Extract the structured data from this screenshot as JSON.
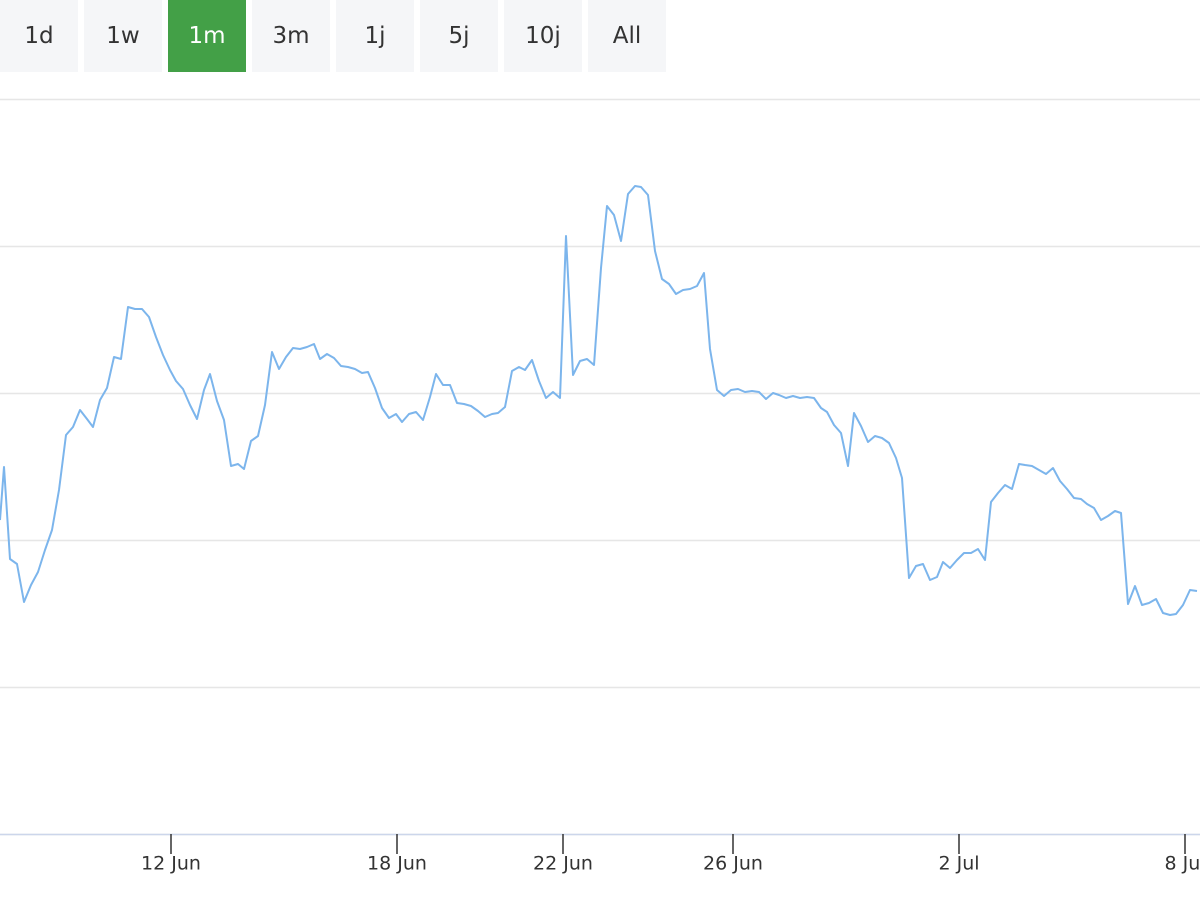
{
  "buttons": {
    "options": [
      "1d",
      "1w",
      "1m",
      "3m",
      "1j",
      "5j",
      "10j",
      "All"
    ],
    "selected": 2
  },
  "chart_data": {
    "type": "line",
    "color": "#7cb5ec",
    "grid": true,
    "xlim": [
      0,
      1200
    ],
    "ylim": [
      0,
      735
    ],
    "yticks": [
      0,
      147,
      294,
      441,
      588,
      735
    ],
    "xticks": [
      {
        "value": 171,
        "label": "12 Jun"
      },
      {
        "value": 397,
        "label": "18 Jun"
      },
      {
        "value": 563,
        "label": "22 Jun"
      },
      {
        "value": 733,
        "label": "26 Jun"
      },
      {
        "value": 959,
        "label": "2 Jul"
      },
      {
        "value": 1185,
        "label": "8 Jul"
      }
    ],
    "x": [
      0,
      4,
      10,
      17,
      24,
      31,
      38,
      45,
      52,
      59,
      66,
      73,
      80,
      87,
      93,
      100,
      107,
      114,
      121,
      128,
      135,
      142,
      149,
      156,
      163,
      170,
      176,
      183,
      190,
      197,
      204,
      210,
      217,
      224,
      231,
      238,
      244,
      251,
      258,
      265,
      272,
      279,
      286,
      293,
      300,
      307,
      314,
      320,
      327,
      334,
      341,
      348,
      355,
      362,
      368,
      375,
      382,
      389,
      396,
      402,
      409,
      416,
      423,
      430,
      436,
      443,
      450,
      457,
      464,
      471,
      478,
      485,
      492,
      498,
      505,
      512,
      519,
      525,
      532,
      539,
      546,
      553,
      560,
      566,
      573,
      580,
      587,
      594,
      601,
      607,
      614,
      621,
      628,
      635,
      641,
      648,
      655,
      662,
      669,
      676,
      683,
      690,
      697,
      704,
      710,
      717,
      724,
      731,
      738,
      745,
      752,
      759,
      766,
      773,
      779,
      786,
      793,
      800,
      807,
      814,
      821,
      827,
      834,
      841,
      848,
      854,
      861,
      868,
      875,
      882,
      889,
      896,
      902,
      909,
      916,
      923,
      930,
      937,
      943,
      950,
      957,
      964,
      971,
      978,
      985,
      991,
      998,
      1005,
      1012,
      1019,
      1025,
      1032,
      1039,
      1046,
      1053,
      1060,
      1067,
      1074,
      1081,
      1087,
      1094,
      1101,
      1108,
      1115,
      1121,
      1128,
      1135,
      1142,
      1149,
      1156,
      1163,
      1170,
      1176,
      1183,
      1190,
      1197
    ],
    "values": [
      314,
      367,
      275,
      270,
      232,
      249,
      262,
      284,
      304,
      344,
      399,
      407,
      424,
      415,
      407,
      434,
      446,
      477,
      475,
      527,
      525,
      525,
      517,
      497,
      479,
      464,
      453,
      445,
      429,
      415,
      444,
      460,
      433,
      414,
      368,
      370,
      365,
      393,
      398,
      429,
      482,
      465,
      477,
      486,
      485,
      487,
      490,
      475,
      480,
      476,
      468,
      467,
      465,
      461,
      462,
      446,
      426,
      416,
      420,
      412,
      420,
      422,
      414,
      437,
      460,
      449,
      449,
      431,
      430,
      428,
      423,
      417,
      420,
      421,
      427,
      463,
      467,
      464,
      474,
      453,
      436,
      442,
      436,
      598,
      459,
      473,
      475,
      469,
      566,
      628,
      619,
      593,
      640,
      648,
      647,
      639,
      583,
      555,
      550,
      540,
      544,
      545,
      548,
      561,
      485,
      444,
      438,
      444,
      445,
      442,
      443,
      442,
      435,
      441,
      439,
      436,
      438,
      436,
      437,
      436,
      426,
      422,
      409,
      401,
      368,
      421,
      408,
      392,
      398,
      396,
      391,
      376,
      356,
      256,
      268,
      270,
      254,
      257,
      272,
      266,
      274,
      281,
      281,
      285,
      274,
      332,
      341,
      349,
      345,
      370,
      369,
      368,
      364,
      360,
      366,
      353,
      345,
      336,
      335,
      330,
      326,
      314,
      318,
      323,
      321,
      230,
      248,
      229,
      231,
      235,
      221,
      219,
      220,
      229,
      244,
      243
    ]
  }
}
